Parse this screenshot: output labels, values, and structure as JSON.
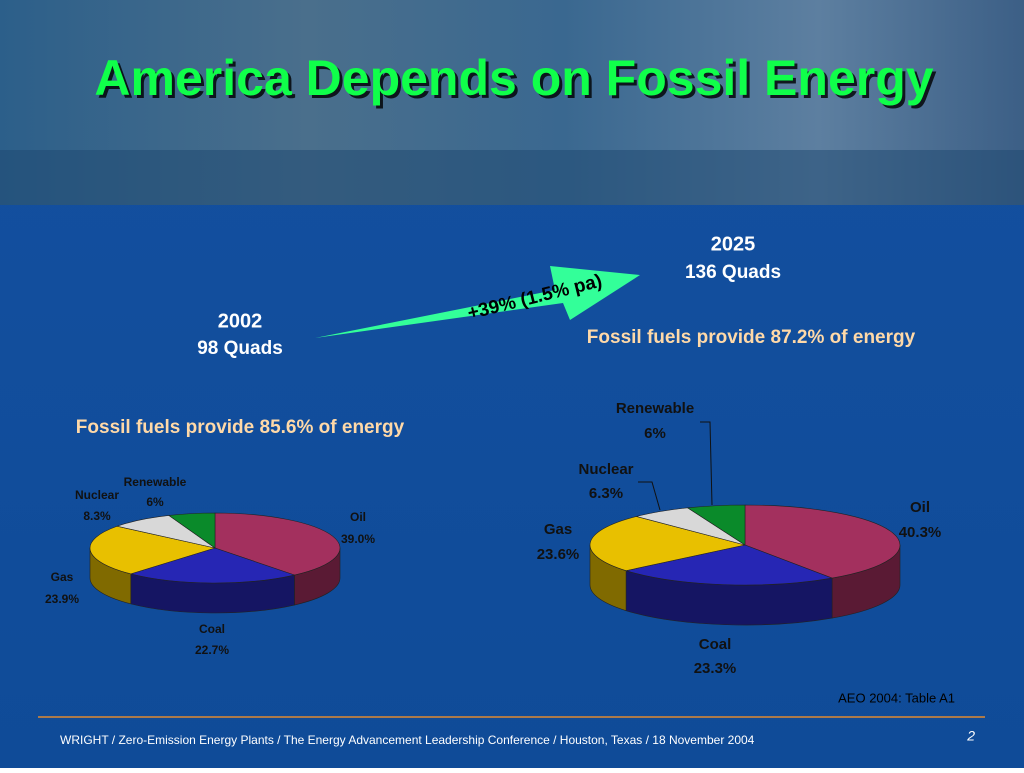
{
  "slide": {
    "title": "America Depends on Fossil Energy",
    "growth": "+39% (1.5% pa)",
    "source": "AEO 2004: Table A1",
    "footer": "WRIGHT / Zero-Emission Energy Plants / The Energy Advancement Leadership Conference / Houston, Texas / 18 November 2004",
    "page": "2"
  },
  "chart_data": [
    {
      "type": "pie",
      "title": "2002",
      "subtitle": "98 Quads",
      "annotation": "Fossil fuels provide 85.6% of energy",
      "categories": [
        "Oil",
        "Coal",
        "Gas",
        "Nuclear",
        "Renewable"
      ],
      "values": [
        39.0,
        22.7,
        23.9,
        8.3,
        6
      ],
      "value_labels": [
        "39.0%",
        "22.7%",
        "23.9%",
        "8.3%",
        "6%"
      ],
      "colors": [
        "#a3305e",
        "#2626b4",
        "#e8c000",
        "#d8d8d8",
        "#0a8a2a"
      ]
    },
    {
      "type": "pie",
      "title": "2025",
      "subtitle": "136 Quads",
      "annotation": "Fossil fuels provide 87.2% of energy",
      "categories": [
        "Oil",
        "Coal",
        "Gas",
        "Nuclear",
        "Renewable"
      ],
      "values": [
        40.3,
        23.3,
        23.6,
        6.3,
        6
      ],
      "value_labels": [
        "40.3%",
        "23.3%",
        "23.6%",
        "6.3%",
        "6%"
      ],
      "colors": [
        "#a3305e",
        "#2626b4",
        "#e8c000",
        "#d8d8d8",
        "#0a8a2a"
      ]
    }
  ]
}
